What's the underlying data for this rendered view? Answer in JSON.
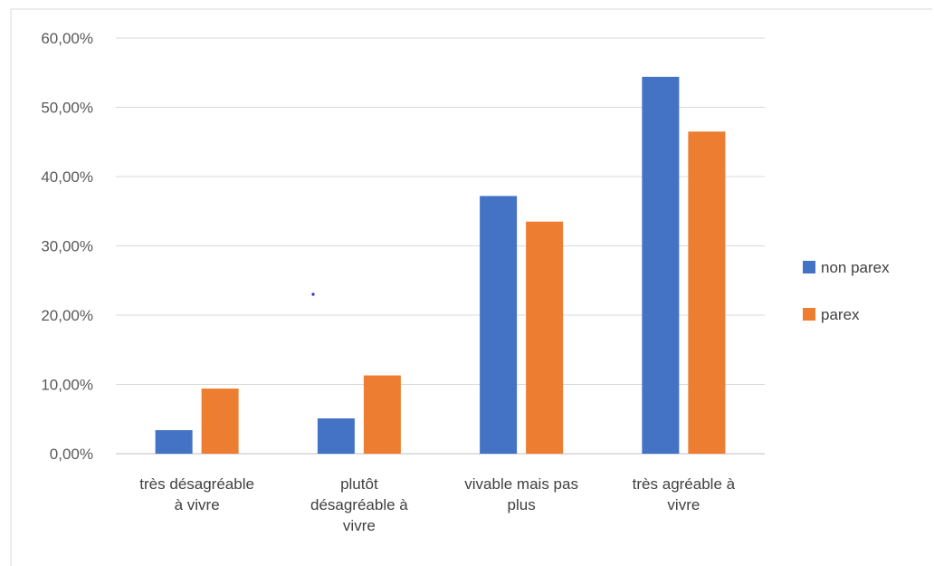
{
  "chart_data": {
    "type": "bar",
    "categories": [
      [
        "très désagréable",
        "à vivre"
      ],
      [
        "plutôt",
        "désagréable à",
        "vivre"
      ],
      [
        "vivable mais pas",
        "plus"
      ],
      [
        "très agréable à",
        "vivre"
      ]
    ],
    "series": [
      {
        "name": "non parex",
        "values": [
          3.4,
          5.1,
          37.2,
          54.4
        ],
        "color": "#4472c4"
      },
      {
        "name": "parex",
        "values": [
          9.4,
          11.3,
          33.5,
          46.5
        ],
        "color": "#ed7d31"
      }
    ],
    "y_ticks": [
      "0,00%",
      "10,00%",
      "20,00%",
      "30,00%",
      "40,00%",
      "50,00%",
      "60,00%"
    ],
    "ylim": [
      0,
      60
    ],
    "grid": true,
    "legend_position": "right",
    "colors": {
      "gridline": "#d9d9d9",
      "frame": "#d9d9d9",
      "axis": "#bfbfbf"
    }
  }
}
